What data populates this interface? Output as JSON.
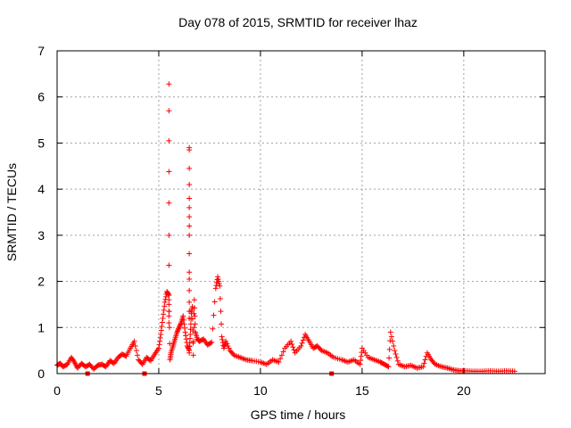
{
  "chart_data": {
    "type": "scatter",
    "title": "Day 078 of 2015, SRMTID for receiver lhaz",
    "xlabel": "GPS time / hours",
    "ylabel": "SRMTID / TECUs",
    "xlim": [
      0,
      24
    ],
    "ylim": [
      0,
      7
    ],
    "xticks": [
      "0",
      "5",
      "10",
      "15",
      "20"
    ],
    "yticks": [
      "0",
      "1",
      "2",
      "3",
      "4",
      "5",
      "6",
      "7"
    ],
    "grid": true,
    "marker": "+",
    "color": "#ff0000",
    "series": [
      {
        "name": "SRMTID",
        "x": [
          0.0,
          0.15,
          0.3,
          0.5,
          0.7,
          0.85,
          1.0,
          1.2,
          1.4,
          1.6,
          1.8,
          2.0,
          2.2,
          2.4,
          2.6,
          2.8,
          3.0,
          3.2,
          3.4,
          3.6,
          3.8,
          4.0,
          4.2,
          4.4,
          4.6,
          4.8,
          5.0,
          5.1,
          5.2,
          5.3,
          5.4,
          5.5,
          5.55,
          5.6,
          5.7,
          5.8,
          5.9,
          6.0,
          6.1,
          6.2,
          6.3,
          6.4,
          6.5,
          6.55,
          6.6,
          6.65,
          6.7,
          6.75,
          6.8,
          6.9,
          7.0,
          7.2,
          7.4,
          7.6,
          7.8,
          7.9,
          8.0,
          8.1,
          8.2,
          8.3,
          8.5,
          8.7,
          9.0,
          9.3,
          9.6,
          10.0,
          10.3,
          10.6,
          10.9,
          11.2,
          11.5,
          11.7,
          12.0,
          12.2,
          12.4,
          12.6,
          12.8,
          13.0,
          13.3,
          13.6,
          14.0,
          14.3,
          14.6,
          14.9,
          15.0,
          15.3,
          15.6,
          15.9,
          16.1,
          16.3,
          16.4,
          16.6,
          16.8,
          17.1,
          17.4,
          17.7,
          18.0,
          18.2,
          18.4,
          18.6,
          18.9,
          19.2,
          19.5,
          19.8,
          20.1,
          20.5,
          20.9,
          21.3,
          21.7,
          22.1,
          22.5,
          5.5,
          5.5,
          5.5,
          5.5,
          5.5,
          5.5,
          5.5,
          5.5,
          5.5,
          5.5,
          5.5,
          5.5,
          6.5,
          6.5,
          6.5,
          6.5,
          6.5,
          6.5,
          6.5,
          6.5,
          6.5,
          6.5,
          6.5,
          6.5,
          6.5,
          6.5,
          6.5,
          6.5,
          6.5,
          6.5,
          1.5,
          4.3,
          13.5
        ],
        "y": [
          0.18,
          0.22,
          0.15,
          0.2,
          0.35,
          0.25,
          0.12,
          0.22,
          0.15,
          0.2,
          0.1,
          0.18,
          0.2,
          0.15,
          0.28,
          0.22,
          0.35,
          0.42,
          0.38,
          0.55,
          0.7,
          0.3,
          0.2,
          0.35,
          0.28,
          0.42,
          0.55,
          0.85,
          1.2,
          1.55,
          1.78,
          1.7,
          0.3,
          0.45,
          0.6,
          0.75,
          0.9,
          1.0,
          1.1,
          1.25,
          0.9,
          0.6,
          0.5,
          0.85,
          1.3,
          1.45,
          0.4,
          1.6,
          0.9,
          0.75,
          0.7,
          0.75,
          0.62,
          0.68,
          1.85,
          2.1,
          1.9,
          0.8,
          0.55,
          0.7,
          0.5,
          0.4,
          0.35,
          0.3,
          0.28,
          0.25,
          0.2,
          0.3,
          0.25,
          0.55,
          0.7,
          0.45,
          0.6,
          0.85,
          0.7,
          0.55,
          0.6,
          0.5,
          0.45,
          0.35,
          0.3,
          0.25,
          0.3,
          0.2,
          0.55,
          0.35,
          0.3,
          0.25,
          0.2,
          0.15,
          0.9,
          0.5,
          0.2,
          0.15,
          0.18,
          0.12,
          0.15,
          0.45,
          0.3,
          0.2,
          0.15,
          0.12,
          0.08,
          0.06,
          0.06,
          0.05,
          0.05,
          0.06,
          0.05,
          0.06,
          0.05,
          2.35,
          3.0,
          3.7,
          4.38,
          5.05,
          5.7,
          6.28,
          1.6,
          1.5,
          1.35,
          1.25,
          1.1,
          4.9,
          4.85,
          4.45,
          4.1,
          3.8,
          3.6,
          3.4,
          3.2,
          3.0,
          2.6,
          2.2,
          2.05,
          1.8,
          1.55,
          1.35,
          1.2,
          0.6,
          0.45,
          0.0,
          0.0,
          0.0
        ]
      }
    ]
  }
}
